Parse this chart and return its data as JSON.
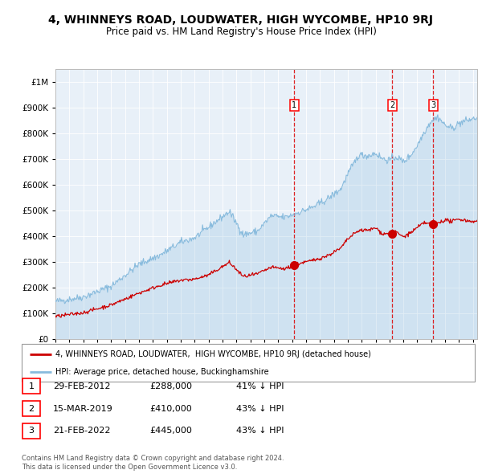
{
  "title": "4, WHINNEYS ROAD, LOUDWATER, HIGH WYCOMBE, HP10 9RJ",
  "subtitle": "Price paid vs. HM Land Registry's House Price Index (HPI)",
  "legend_label_red": "4, WHINNEYS ROAD, LOUDWATER,  HIGH WYCOMBE, HP10 9RJ (detached house)",
  "legend_label_blue": "HPI: Average price, detached house, Buckinghamshire",
  "footer1": "Contains HM Land Registry data © Crown copyright and database right 2024.",
  "footer2": "This data is licensed under the Open Government Licence v3.0.",
  "transactions": [
    {
      "num": 1,
      "date": "29-FEB-2012",
      "price": "£288,000",
      "pct": "41% ↓ HPI"
    },
    {
      "num": 2,
      "date": "15-MAR-2019",
      "price": "£410,000",
      "pct": "43% ↓ HPI"
    },
    {
      "num": 3,
      "date": "21-FEB-2022",
      "price": "£445,000",
      "pct": "43% ↓ HPI"
    }
  ],
  "transaction_years": [
    2012.16,
    2019.21,
    2022.13
  ],
  "transaction_values_red": [
    288000,
    410000,
    445000
  ],
  "ylim": [
    0,
    1050000
  ],
  "xlim_start": 1995.0,
  "xlim_end": 2025.3,
  "plot_bg": "#e8f0f8",
  "red_color": "#cc0000",
  "blue_color": "#88bbdd",
  "grid_color": "#cccccc",
  "vline_color": "#dd0000"
}
